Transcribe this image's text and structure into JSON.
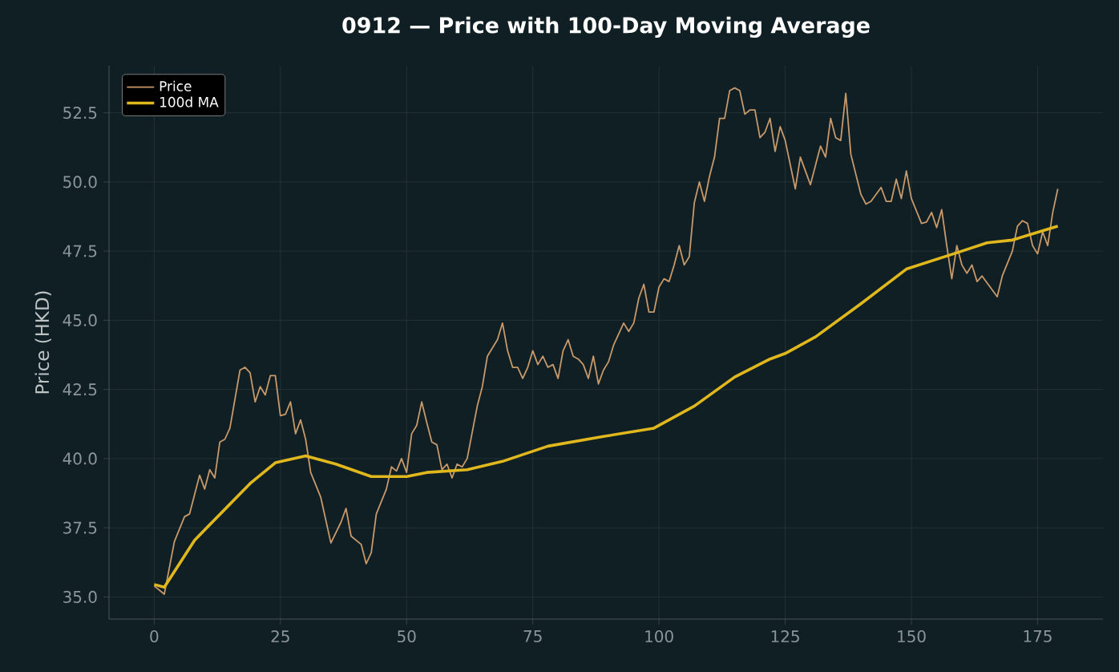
{
  "chart_data": {
    "type": "line",
    "title": "0912 — Price with 100-Day Moving Average",
    "ylabel": "Price (HKD)",
    "xlim": [
      -8.95,
      187.95
    ],
    "ylim": [
      34.2,
      54.2
    ],
    "xticks": [
      0,
      25,
      50,
      75,
      100,
      125,
      150,
      175
    ],
    "yticks": [
      {
        "value": 35,
        "label": "35.0"
      },
      {
        "value": 37.5,
        "label": "37.5"
      },
      {
        "value": 40,
        "label": "40.0"
      },
      {
        "value": 42.5,
        "label": "42.5"
      },
      {
        "value": 45,
        "label": "45.0"
      },
      {
        "value": 47.5,
        "label": "47.5"
      },
      {
        "value": 50,
        "label": "50.0"
      },
      {
        "value": 52.5,
        "label": "52.5"
      }
    ],
    "grid": true,
    "legend": "top left",
    "series": [
      {
        "name": "Price",
        "color": "#c8996a",
        "x": [
          0,
          2,
          4,
          6,
          7,
          9,
          10,
          11,
          12,
          13,
          14,
          15,
          17,
          18,
          19,
          20,
          21,
          22,
          23,
          24,
          25,
          26,
          27,
          28,
          29,
          30,
          31,
          33,
          35,
          37,
          38,
          39,
          41,
          42,
          43,
          44,
          46,
          47,
          48,
          49,
          50,
          51,
          52,
          53,
          54,
          55,
          56,
          57,
          58,
          59,
          60,
          61,
          62,
          64,
          65,
          66,
          68,
          69,
          70,
          71,
          72,
          73,
          74,
          75,
          76,
          77,
          78,
          79,
          80,
          81,
          82,
          83,
          84,
          85,
          86,
          87,
          88,
          89,
          90,
          91,
          93,
          94,
          95,
          96,
          97,
          98,
          99,
          100,
          101,
          102,
          103,
          104,
          105,
          106,
          107,
          108,
          109,
          110,
          111,
          112,
          113,
          114,
          115,
          116,
          117,
          118,
          119,
          120,
          121,
          122,
          123,
          124,
          125,
          127,
          128,
          130,
          132,
          133,
          134,
          135,
          136,
          137,
          138,
          140,
          141,
          142,
          144,
          145,
          146,
          147,
          148,
          149,
          150,
          152,
          153,
          154,
          155,
          156,
          157,
          158,
          159,
          160,
          161,
          162,
          163,
          164,
          165,
          167,
          168,
          170,
          171,
          172,
          173,
          174,
          175,
          176,
          177,
          178,
          179
        ],
        "values": [
          35.4,
          35.1,
          37.0,
          37.9,
          38.0,
          39.4,
          38.9,
          39.6,
          39.3,
          40.6,
          40.7,
          41.1,
          43.2,
          43.3,
          43.1,
          42.05,
          42.6,
          42.3,
          43.0,
          43.0,
          41.55,
          41.6,
          42.05,
          40.9,
          41.4,
          40.7,
          39.5,
          38.6,
          36.95,
          37.7,
          38.2,
          37.2,
          36.9,
          36.2,
          36.6,
          38.0,
          38.9,
          39.7,
          39.55,
          40.0,
          39.5,
          40.9,
          41.2,
          42.05,
          41.3,
          40.6,
          40.5,
          39.6,
          39.8,
          39.3,
          39.8,
          39.7,
          40.0,
          41.9,
          42.6,
          43.7,
          44.3,
          44.9,
          43.9,
          43.3,
          43.3,
          42.9,
          43.3,
          43.9,
          43.4,
          43.7,
          43.3,
          43.4,
          42.9,
          43.9,
          44.3,
          43.7,
          43.6,
          43.4,
          42.9,
          43.7,
          42.7,
          43.2,
          43.5,
          44.1,
          44.9,
          44.6,
          44.9,
          45.8,
          46.3,
          45.3,
          45.3,
          46.2,
          46.5,
          46.4,
          47.0,
          47.7,
          47.0,
          47.3,
          49.25,
          50.0,
          49.3,
          50.2,
          50.9,
          52.3,
          52.3,
          53.3,
          53.4,
          53.3,
          52.45,
          52.6,
          52.6,
          51.6,
          51.8,
          52.3,
          51.1,
          52.0,
          51.5,
          49.75,
          50.9,
          49.9,
          51.3,
          50.9,
          52.3,
          51.6,
          51.5,
          53.2,
          51.0,
          49.55,
          49.2,
          49.3,
          49.8,
          49.3,
          49.3,
          50.1,
          49.4,
          50.4,
          49.4,
          48.5,
          48.55,
          48.9,
          48.35,
          49.0,
          47.7,
          46.5,
          47.7,
          47.0,
          46.7,
          47.0,
          46.4,
          46.6,
          46.35,
          45.85,
          46.6,
          47.5,
          48.4,
          48.6,
          48.5,
          47.7,
          47.4,
          48.2,
          47.7,
          48.9,
          49.75
        ]
      },
      {
        "name": "100d MA",
        "color": "#e0b81e",
        "x": [
          0,
          2,
          8,
          19,
          24,
          30,
          36,
          43,
          50,
          54,
          62,
          69,
          78,
          89,
          99,
          107,
          115,
          122,
          125,
          131,
          140,
          149,
          160,
          165,
          170,
          179
        ],
        "values": [
          35.45,
          35.35,
          37.05,
          39.1,
          39.85,
          40.1,
          39.8,
          39.35,
          39.35,
          39.5,
          39.6,
          39.9,
          40.45,
          40.8,
          41.1,
          41.9,
          42.95,
          43.6,
          43.8,
          44.4,
          45.6,
          46.85,
          47.5,
          47.8,
          47.9,
          48.4
        ]
      }
    ]
  }
}
